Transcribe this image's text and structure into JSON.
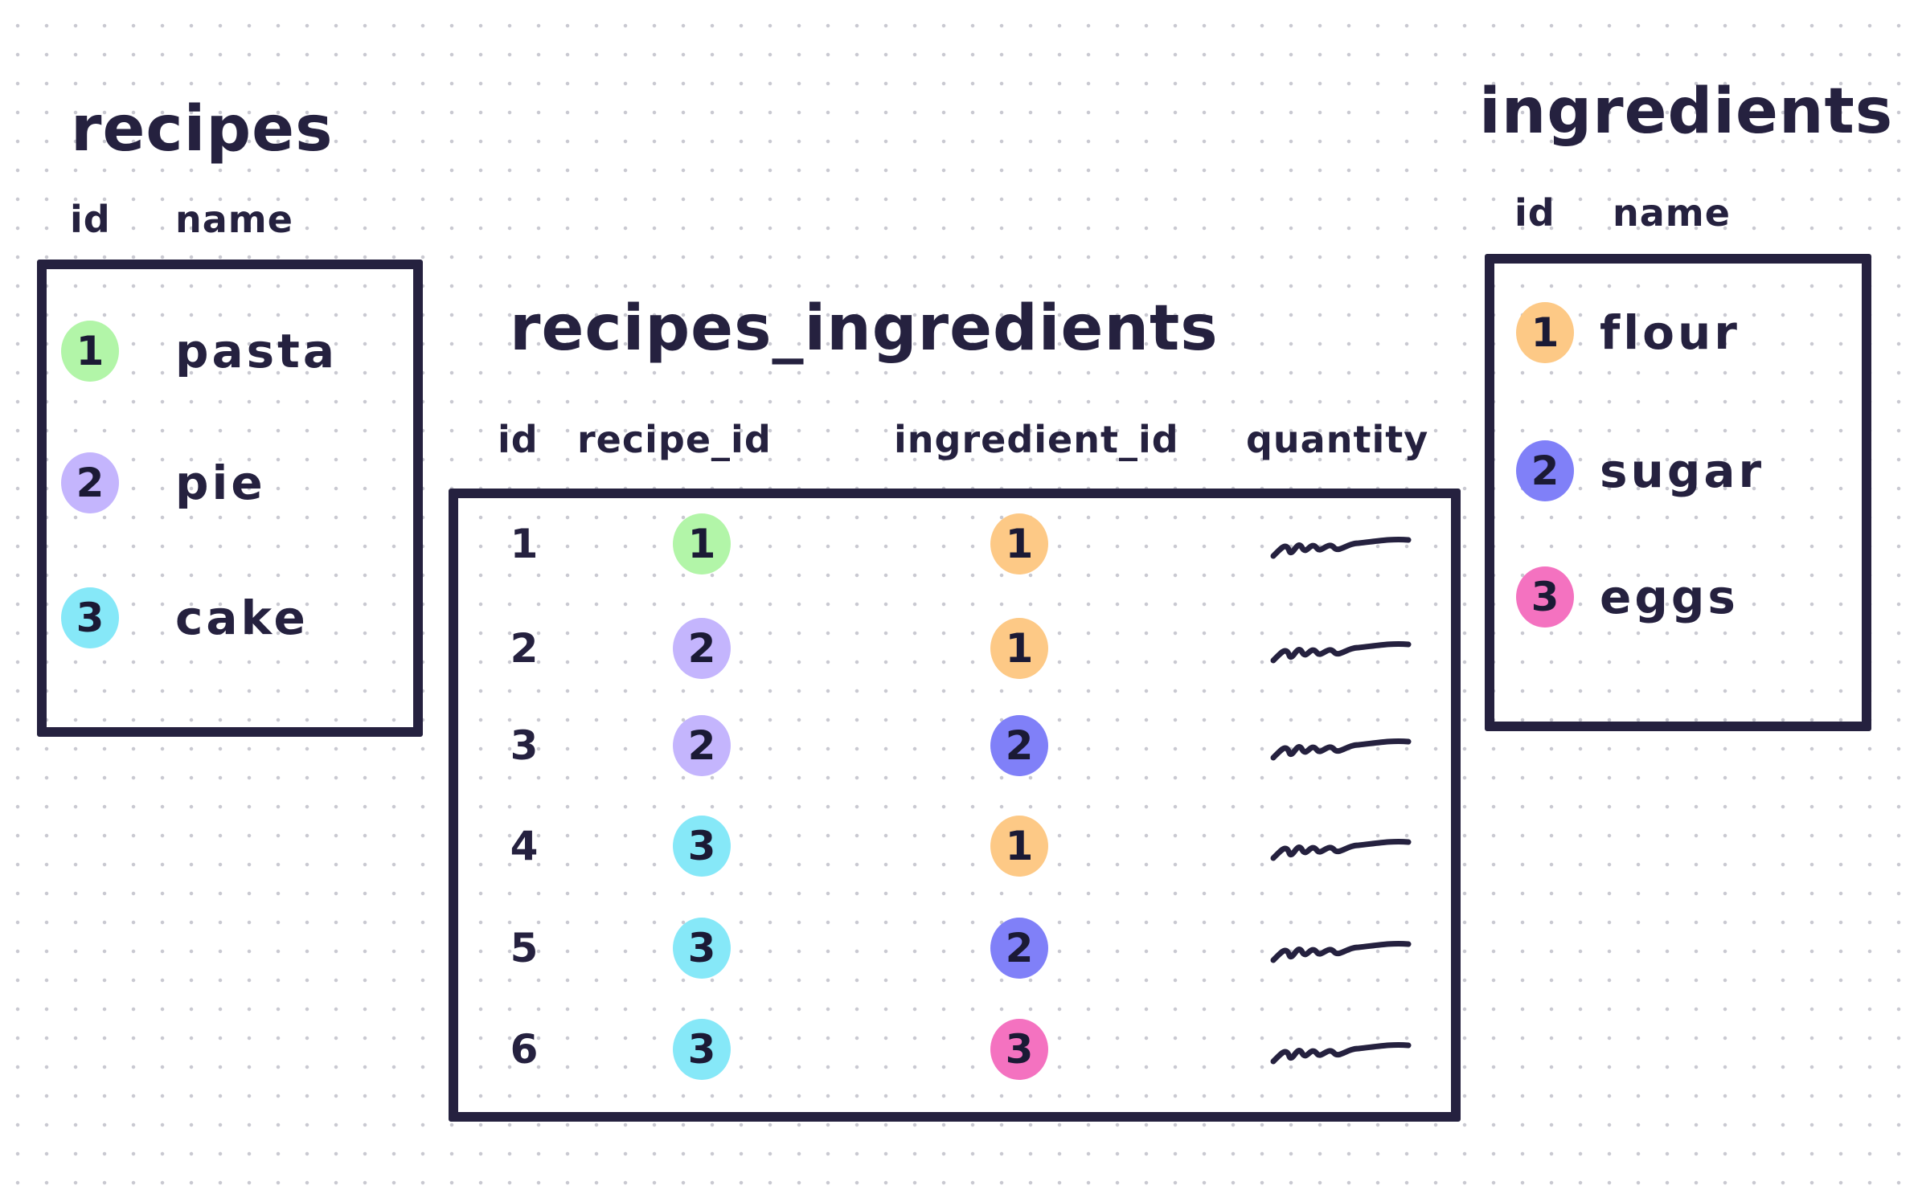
{
  "colors": {
    "ink": "#25213f",
    "green": "#b2f5a8",
    "lavender": "#c4b5fd",
    "cyan": "#86e8f8",
    "orange": "#fdc986",
    "blue": "#8080f8",
    "pink": "#f472c0"
  },
  "recipes": {
    "title": "recipes",
    "headers": [
      "id",
      "name"
    ],
    "rows": [
      {
        "id": "1",
        "name": "pasta",
        "color": "#b2f5a8"
      },
      {
        "id": "2",
        "name": "pie",
        "color": "#c4b5fd"
      },
      {
        "id": "3",
        "name": "cake",
        "color": "#86e8f8"
      }
    ]
  },
  "ingredients": {
    "title": "ingredients",
    "headers": [
      "id",
      "name"
    ],
    "rows": [
      {
        "id": "1",
        "name": "flour",
        "color": "#fdc986"
      },
      {
        "id": "2",
        "name": "sugar",
        "color": "#8080f8"
      },
      {
        "id": "3",
        "name": "eggs",
        "color": "#f472c0"
      }
    ]
  },
  "recipes_ingredients": {
    "title": "recipes_ingredients",
    "headers": [
      "id",
      "recipe_id",
      "ingredient_id",
      "quantity"
    ],
    "quantity_glyph": "scribble-icon",
    "rows": [
      {
        "id": "1",
        "recipe_id": "1",
        "ingredient_id": "1"
      },
      {
        "id": "2",
        "recipe_id": "2",
        "ingredient_id": "1"
      },
      {
        "id": "3",
        "recipe_id": "2",
        "ingredient_id": "2"
      },
      {
        "id": "4",
        "recipe_id": "3",
        "ingredient_id": "1"
      },
      {
        "id": "5",
        "recipe_id": "3",
        "ingredient_id": "2"
      },
      {
        "id": "6",
        "recipe_id": "3",
        "ingredient_id": "3"
      }
    ]
  }
}
